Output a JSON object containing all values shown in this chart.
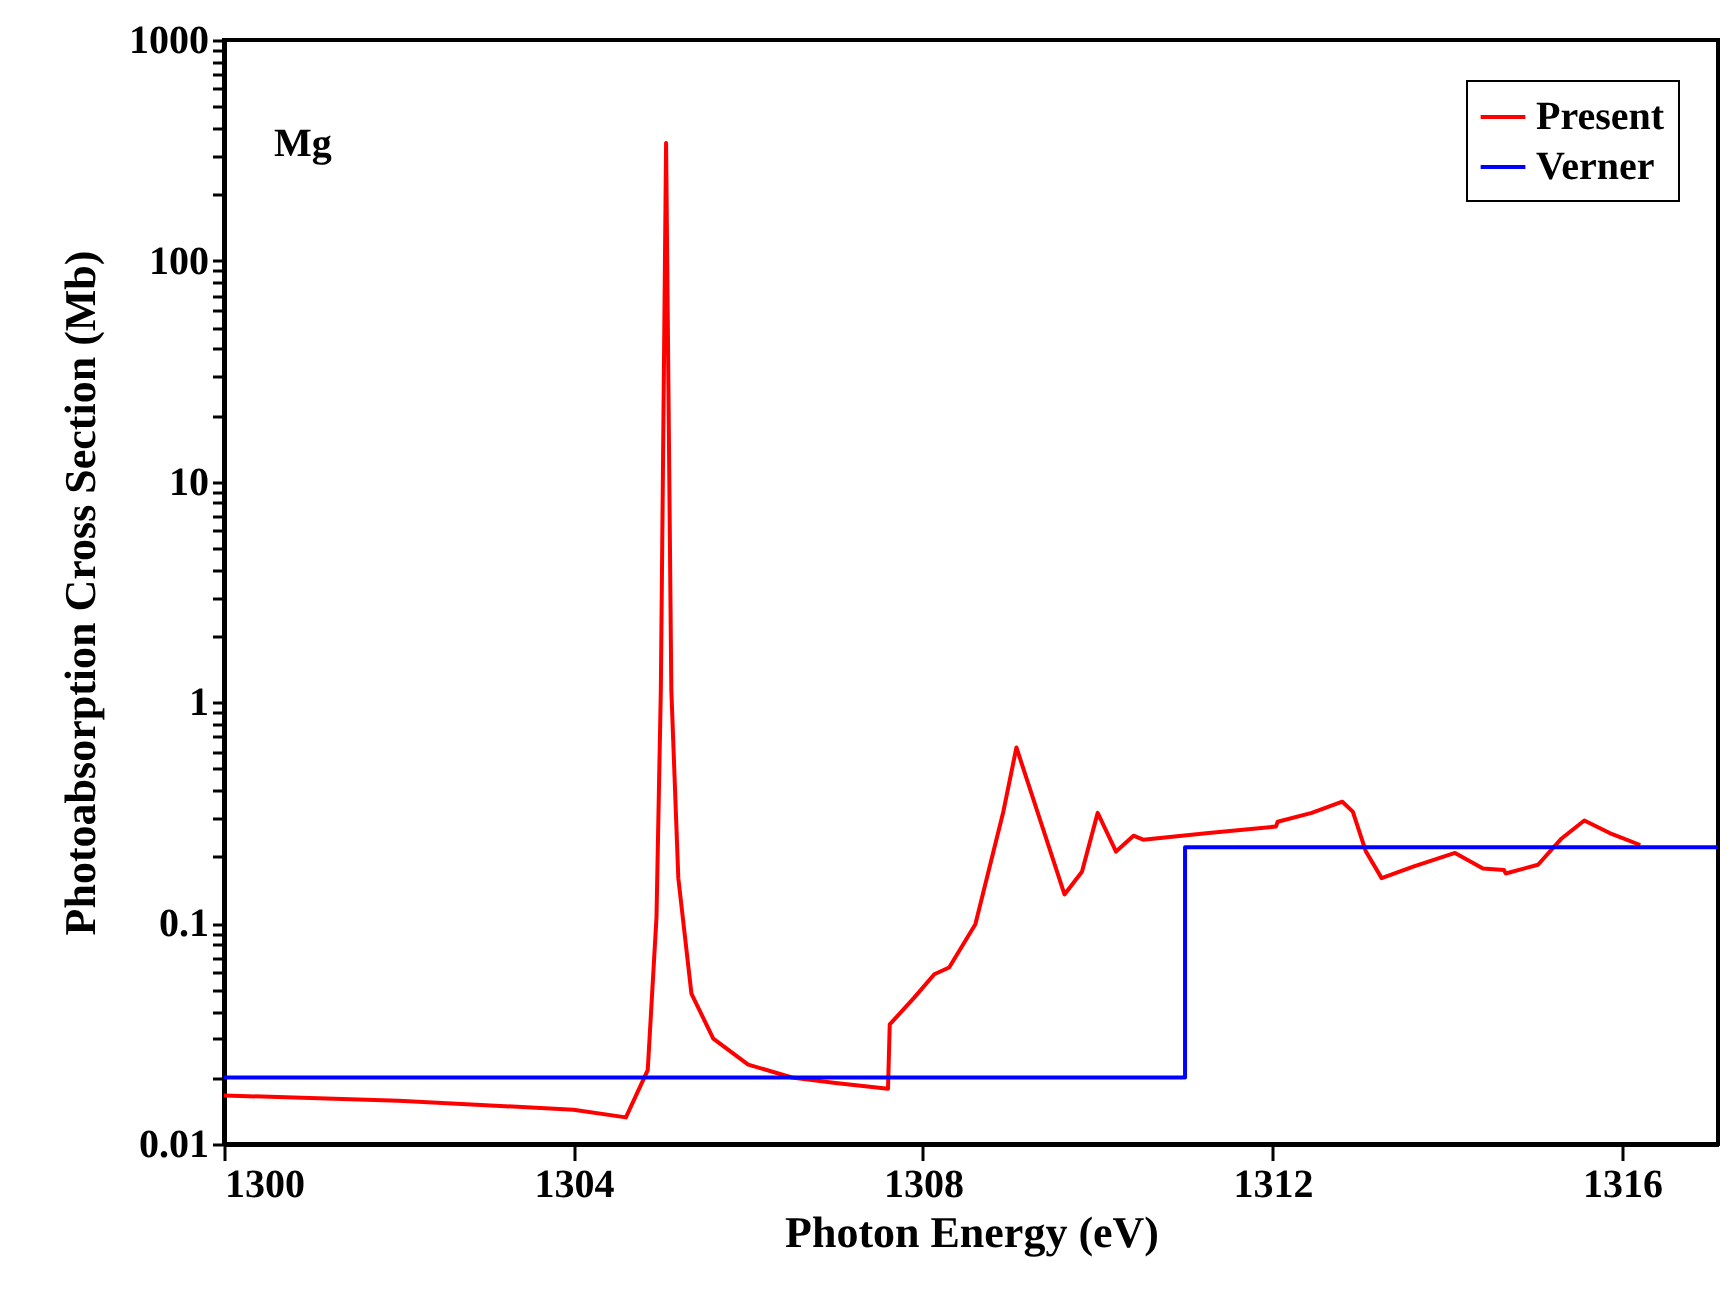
{
  "chart_data": {
    "type": "line",
    "xlabel": "Photon Energy (eV)",
    "ylabel": "Photoabsorption Cross Section (Mb)",
    "annotations": [
      "Mg"
    ],
    "log": "y",
    "legend": "top right",
    "grid": false,
    "line_style": "solid",
    "marker": "none",
    "xlim": [
      1300,
      1317.1
    ],
    "xticks": [
      1300,
      1304,
      1308,
      1312,
      1316
    ],
    "ylim": [
      0.01,
      1000
    ],
    "yticks": [
      0.01,
      {
        "value": 0.02,
        "label": null
      },
      {
        "value": 0.03,
        "label": null
      },
      {
        "value": 0.04,
        "label": null
      },
      {
        "value": 0.05,
        "label": null
      },
      {
        "value": 0.06,
        "label": null
      },
      {
        "value": 0.07,
        "label": null
      },
      {
        "value": 0.08,
        "label": null
      },
      {
        "value": 0.09,
        "label": null
      },
      0.1,
      {
        "value": 0.2,
        "label": null
      },
      {
        "value": 0.3,
        "label": null
      },
      {
        "value": 0.4,
        "label": null
      },
      {
        "value": 0.5,
        "label": null
      },
      {
        "value": 0.6,
        "label": null
      },
      {
        "value": 0.7,
        "label": null
      },
      {
        "value": 0.8,
        "label": null
      },
      {
        "value": 0.9,
        "label": null
      },
      1,
      {
        "value": 2,
        "label": null
      },
      {
        "value": 3,
        "label": null
      },
      {
        "value": 4,
        "label": null
      },
      {
        "value": 5,
        "label": null
      },
      {
        "value": 6,
        "label": null
      },
      {
        "value": 7,
        "label": null
      },
      {
        "value": 8,
        "label": null
      },
      {
        "value": 9,
        "label": null
      },
      10,
      {
        "value": 20,
        "label": null
      },
      {
        "value": 30,
        "label": null
      },
      {
        "value": 40,
        "label": null
      },
      {
        "value": 50,
        "label": null
      },
      {
        "value": 60,
        "label": null
      },
      {
        "value": 70,
        "label": null
      },
      {
        "value": 80,
        "label": null
      },
      {
        "value": 90,
        "label": null
      },
      100,
      {
        "value": 200,
        "label": null
      },
      {
        "value": 300,
        "label": null
      },
      {
        "value": 400,
        "label": null
      },
      {
        "value": 500,
        "label": null
      },
      {
        "value": 600,
        "label": null
      },
      {
        "value": 700,
        "label": null
      },
      {
        "value": 800,
        "label": null
      },
      {
        "value": 900,
        "label": null
      },
      1000
    ],
    "series": [
      {
        "name": "Present",
        "color": "#ff0000",
        "x": [
          1300,
          1302,
          1304,
          1304.6,
          1304.85,
          1304.95,
          1305.0,
          1305.06,
          1305.12,
          1305.2,
          1305.35,
          1305.6,
          1306,
          1306.5,
          1307,
          1307.6,
          1307.62,
          1307.9,
          1308.13,
          1308.3,
          1308.6,
          1308.92,
          1309.07,
          1309.31,
          1309.62,
          1309.82,
          1310.0,
          1310.21,
          1310.41,
          1310.52,
          1311.27,
          1312.04,
          1312.06,
          1312.45,
          1312.8,
          1312.92,
          1313.07,
          1313.25,
          1313.62,
          1314.09,
          1314.41,
          1314.65,
          1314.67,
          1315.04,
          1315.31,
          1315.57,
          1315.86,
          1316.21
        ],
        "values": [
          0.0166,
          0.0157,
          0.0143,
          0.0132,
          0.0216,
          0.106,
          1.14,
          342,
          1.14,
          0.16,
          0.048,
          0.03,
          0.0229,
          0.02,
          0.0189,
          0.0178,
          0.0348,
          0.046,
          0.0587,
          0.063,
          0.099,
          0.32,
          0.625,
          0.32,
          0.135,
          0.171,
          0.316,
          0.211,
          0.249,
          0.239,
          0.256,
          0.274,
          0.288,
          0.316,
          0.355,
          0.32,
          0.211,
          0.16,
          0.181,
          0.208,
          0.177,
          0.174,
          0.168,
          0.184,
          0.242,
          0.292,
          0.256,
          0.226
        ]
      },
      {
        "name": "Verner",
        "color": "#0000ff",
        "x": [
          1300,
          1311,
          1311,
          1317.1
        ],
        "values": [
          0.02,
          0.02,
          0.221,
          0.221
        ]
      }
    ]
  }
}
